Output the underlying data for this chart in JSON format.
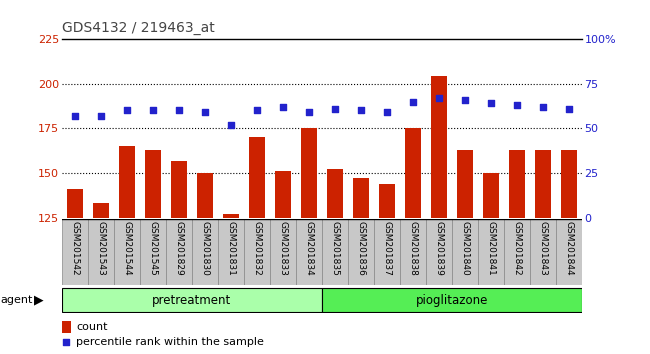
{
  "title": "GDS4132 / 219463_at",
  "categories": [
    "GSM201542",
    "GSM201543",
    "GSM201544",
    "GSM201545",
    "GSM201829",
    "GSM201830",
    "GSM201831",
    "GSM201832",
    "GSM201833",
    "GSM201834",
    "GSM201835",
    "GSM201836",
    "GSM201837",
    "GSM201838",
    "GSM201839",
    "GSM201840",
    "GSM201841",
    "GSM201842",
    "GSM201843",
    "GSM201844"
  ],
  "bar_values": [
    141,
    133,
    165,
    163,
    157,
    150,
    127,
    170,
    151,
    175,
    152,
    147,
    144,
    175,
    204,
    163,
    150,
    163,
    163,
    163
  ],
  "percentile_values": [
    57,
    57,
    60,
    60,
    60,
    59,
    52,
    60,
    62,
    59,
    61,
    60,
    59,
    65,
    67,
    66,
    64,
    63,
    62,
    61
  ],
  "bar_color": "#cc2200",
  "dot_color": "#2222cc",
  "bar_bottom": 125,
  "ylim_left": [
    125,
    225
  ],
  "ylim_right": [
    0,
    100
  ],
  "yticks_left": [
    125,
    150,
    175,
    200,
    225
  ],
  "yticks_right": [
    0,
    25,
    50,
    75,
    100
  ],
  "pretreatment_count": 10,
  "group_labels": [
    "pretreatment",
    "pioglitazone"
  ],
  "group_colors": [
    "#aaffaa",
    "#55ee55"
  ],
  "agent_label": "agent",
  "legend_count_label": "count",
  "legend_percentile_label": "percentile rank within the sample",
  "title_color": "#444444",
  "left_axis_color": "#cc2200",
  "right_axis_color": "#2222cc",
  "cell_bg_color": "#c8c8c8",
  "cell_border_color": "#888888",
  "plot_bg_color": "#ffffff",
  "grid_color": "#000000",
  "top_border_color": "#000000"
}
